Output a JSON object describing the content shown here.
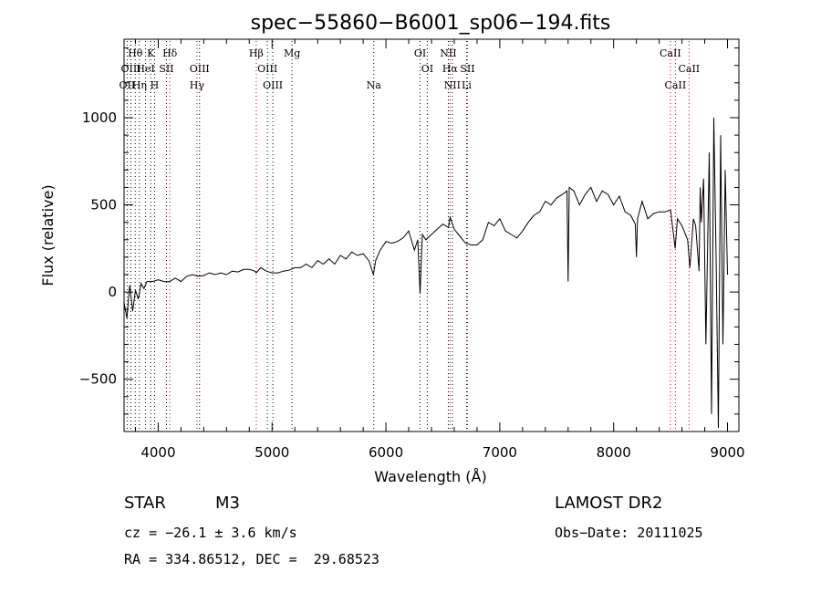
{
  "chart_data": {
    "type": "line",
    "title": "spec−55860−B6001_sp06−194.fits",
    "xlabel": "Wavelength (Å)",
    "ylabel": "Flux (relative)",
    "xlim": [
      3700,
      9100
    ],
    "ylim": [
      -800,
      1450
    ],
    "xticks": [
      4000,
      5000,
      6000,
      7000,
      8000,
      9000
    ],
    "yticks": [
      -500,
      0,
      500,
      1000
    ],
    "xtick_labels": [
      "4000",
      "5000",
      "6000",
      "7000",
      "8000",
      "9000"
    ],
    "ytick_labels": [
      "−500",
      "0",
      "500",
      "1000"
    ],
    "grid": false,
    "series": [
      {
        "x": [
          3700,
          3725,
          3750,
          3775,
          3800,
          3825,
          3850,
          3875,
          3900,
          3950,
          4000,
          4050,
          4100,
          4150,
          4200,
          4250,
          4300,
          4350,
          4400,
          4450,
          4500,
          4550,
          4600,
          4650,
          4700,
          4750,
          4800,
          4850,
          4861,
          4900,
          4950,
          5000,
          5050,
          5100,
          5150,
          5200,
          5250,
          5300,
          5350,
          5400,
          5450,
          5500,
          5550,
          5600,
          5650,
          5700,
          5750,
          5800,
          5850,
          5890,
          5910,
          5950,
          6000,
          6050,
          6100,
          6150,
          6200,
          6250,
          6280,
          6300,
          6320,
          6350,
          6400,
          6450,
          6500,
          6550,
          6563,
          6600,
          6650,
          6700,
          6750,
          6800,
          6850,
          6900,
          6950,
          7000,
          7050,
          7100,
          7150,
          7200,
          7250,
          7300,
          7350,
          7400,
          7450,
          7500,
          7550,
          7590,
          7600,
          7610,
          7650,
          7700,
          7750,
          7800,
          7850,
          7900,
          7950,
          8000,
          8050,
          8100,
          8150,
          8190,
          8200,
          8210,
          8250,
          8300,
          8350,
          8400,
          8450,
          8500,
          8540,
          8560,
          8600,
          8650,
          8670,
          8700,
          8720,
          8750,
          8760,
          8770,
          8790,
          8810,
          8840,
          8860,
          8880,
          8900,
          8920,
          8940,
          8960,
          8980,
          9000
        ],
        "y": [
          -60,
          -150,
          40,
          -110,
          10,
          -40,
          50,
          20,
          60,
          60,
          70,
          60,
          60,
          80,
          60,
          90,
          100,
          90,
          95,
          110,
          100,
          110,
          100,
          120,
          115,
          130,
          130,
          120,
          110,
          140,
          120,
          110,
          110,
          120,
          125,
          140,
          140,
          160,
          140,
          180,
          160,
          190,
          160,
          210,
          190,
          230,
          210,
          220,
          180,
          100,
          180,
          240,
          290,
          280,
          290,
          310,
          350,
          240,
          300,
          -10,
          330,
          300,
          330,
          360,
          390,
          370,
          430,
          360,
          320,
          280,
          270,
          270,
          300,
          400,
          380,
          420,
          350,
          330,
          310,
          350,
          400,
          440,
          460,
          520,
          500,
          540,
          560,
          580,
          60,
          600,
          580,
          500,
          560,
          600,
          520,
          580,
          560,
          500,
          550,
          460,
          440,
          390,
          200,
          420,
          520,
          420,
          450,
          460,
          460,
          470,
          250,
          420,
          380,
          300,
          140,
          420,
          380,
          120,
          600,
          400,
          650,
          -300,
          800,
          -700,
          1000,
          200,
          -780,
          900,
          -300,
          700,
          100
        ]
      }
    ],
    "line_annotations": [
      {
        "label": "Hθ",
        "wl": 3798,
        "row": 1
      },
      {
        "label": "K",
        "wl": 3934,
        "row": 1
      },
      {
        "label": "Hδ",
        "wl": 4102,
        "row": 1
      },
      {
        "label": "Hβ",
        "wl": 4861,
        "row": 1
      },
      {
        "label": "Mg",
        "wl": 5175,
        "row": 1
      },
      {
        "label": "OI",
        "wl": 6300,
        "row": 1
      },
      {
        "label": "NII",
        "wl": 6548,
        "row": 1
      },
      {
        "label": "CaII",
        "wl": 8498,
        "row": 1
      },
      {
        "label": "OIII",
        "wl": 3760,
        "row": 2
      },
      {
        "label": "HeI",
        "wl": 3889,
        "row": 2
      },
      {
        "label": "SII",
        "wl": 4072,
        "row": 2
      },
      {
        "label": "OIII",
        "wl": 4363,
        "row": 2
      },
      {
        "label": "OIII",
        "wl": 4959,
        "row": 2
      },
      {
        "label": "OI",
        "wl": 6363,
        "row": 2
      },
      {
        "label": "Hα",
        "wl": 6563,
        "row": 2
      },
      {
        "label": "SII",
        "wl": 6716,
        "row": 2
      },
      {
        "label": "CaII",
        "wl": 8662,
        "row": 2
      },
      {
        "label": "OII",
        "wl": 3727,
        "row": 3
      },
      {
        "label": "Hη",
        "wl": 3835,
        "row": 3
      },
      {
        "label": "H",
        "wl": 3968,
        "row": 3
      },
      {
        "label": "Hγ",
        "wl": 4340,
        "row": 3
      },
      {
        "label": "OIII",
        "wl": 5007,
        "row": 3
      },
      {
        "label": "Na",
        "wl": 5893,
        "row": 3
      },
      {
        "label": "NII",
        "wl": 6583,
        "row": 3
      },
      {
        "label": "Li",
        "wl": 6708,
        "row": 3
      },
      {
        "label": "CaII",
        "wl": 8542,
        "row": 3
      }
    ],
    "line_colors": {
      "default": "#000000",
      "red": "#cc0000"
    },
    "red_line_wls": [
      4102,
      4340,
      4861,
      6563,
      6716,
      8498,
      8542,
      8662
    ]
  },
  "info": {
    "object_type": "STAR",
    "subclass": "M3",
    "survey": "LAMOST DR2",
    "cz": "cz = −26.1 ± 3.6 km/s",
    "obs_date": "Obs−Date: 20111025",
    "radec": "RA = 334.86512, DEC =  29.68523"
  }
}
